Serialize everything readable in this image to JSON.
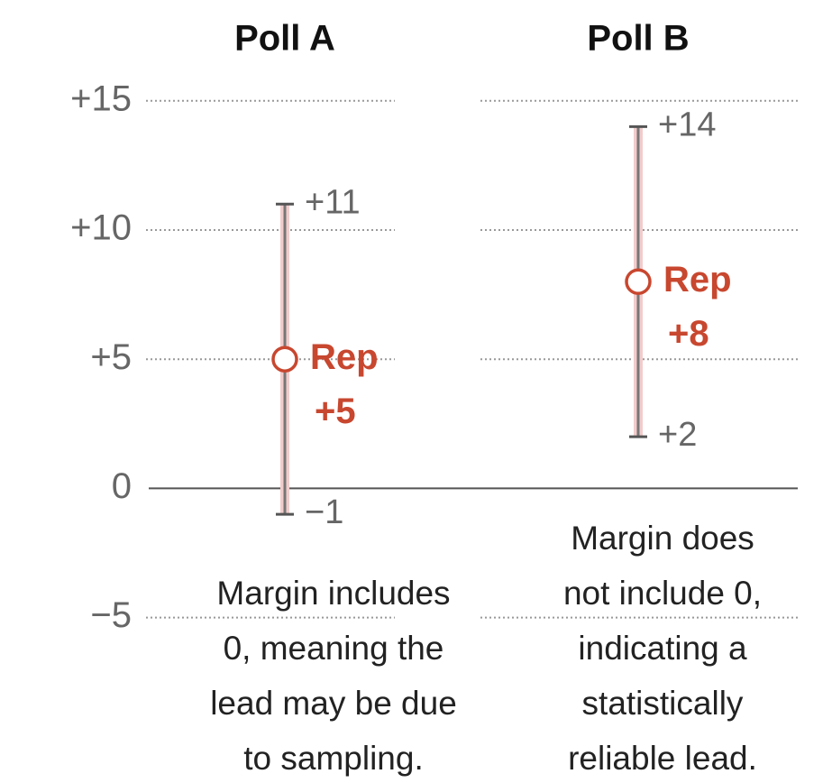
{
  "chart_data": {
    "type": "errorbar",
    "categories": [
      "Poll A",
      "Poll B"
    ],
    "values": [
      5,
      8
    ],
    "value_labels": [
      [
        "Rep",
        "+5"
      ],
      [
        "Rep",
        "+8"
      ]
    ],
    "low": [
      -1,
      2
    ],
    "high": [
      11,
      14
    ],
    "low_labels": [
      "−1",
      "+2"
    ],
    "high_labels": [
      "+11",
      "+14"
    ],
    "annotations": [
      [
        "Margin includes",
        "0, meaning the",
        "lead may be due",
        "to sampling."
      ],
      [
        "Margin does",
        "not include 0,",
        "indicating a",
        "statistically",
        "reliable lead."
      ]
    ],
    "color": "#c8472f",
    "ylim": [
      -11.4,
      18.9
    ],
    "yticks": [
      {
        "value": 15,
        "label": "+15"
      },
      {
        "value": 10,
        "label": "+10"
      },
      {
        "value": 5,
        "label": "+5"
      },
      0,
      {
        "value": -5,
        "label": "−5"
      }
    ],
    "grid": true
  }
}
